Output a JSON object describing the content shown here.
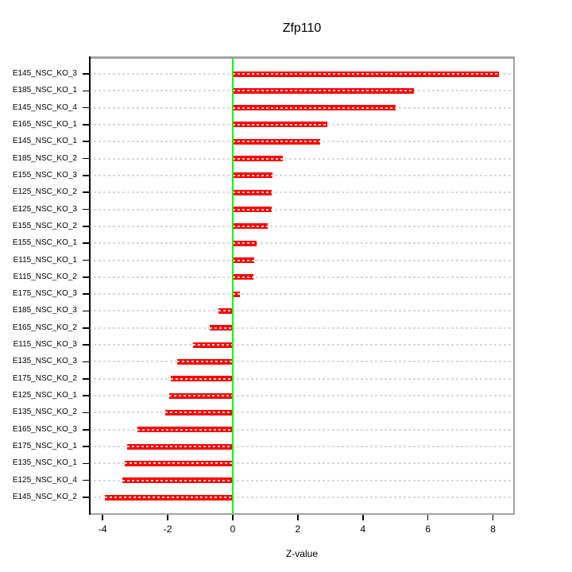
{
  "chart_data": {
    "type": "bar",
    "orientation": "horizontal",
    "title": "Zfp110",
    "xlabel": "Z-value",
    "ylabel": "",
    "categories": [
      "E145_NSC_KO_3",
      "E185_NSC_KO_1",
      "E145_NSC_KO_4",
      "E165_NSC_KO_1",
      "E145_NSC_KO_1",
      "E185_NSC_KO_2",
      "E155_NSC_KO_3",
      "E125_NSC_KO_2",
      "E125_NSC_KO_3",
      "E155_NSC_KO_2",
      "E155_NSC_KO_1",
      "E115_NSC_KO_1",
      "E115_NSC_KO_2",
      "E175_NSC_KO_3",
      "E185_NSC_KO_3",
      "E165_NSC_KO_2",
      "E115_NSC_KO_3",
      "E135_NSC_KO_3",
      "E175_NSC_KO_2",
      "E125_NSC_KO_1",
      "E135_NSC_KO_2",
      "E165_NSC_KO_3",
      "E175_NSC_KO_1",
      "E135_NSC_KO_1",
      "E125_NSC_KO_4",
      "E145_NSC_KO_2"
    ],
    "values": [
      8.19,
      5.57,
      5.0,
      2.91,
      2.68,
      1.54,
      1.21,
      1.19,
      1.19,
      1.07,
      0.74,
      0.66,
      0.64,
      0.23,
      -0.45,
      -0.71,
      -1.22,
      -1.7,
      -1.9,
      -1.96,
      -2.08,
      -2.93,
      -3.25,
      -3.32,
      -3.4,
      -3.94
    ],
    "x_ticks": [
      -4,
      -2,
      0,
      2,
      4,
      6,
      8
    ],
    "xlim": [
      -4.4,
      8.7
    ],
    "grid": "dashed horizontal line per category",
    "zero_reference_line": 0,
    "legend": "none",
    "colors": {
      "bar": "#ff0000",
      "bar_dash_overlay": "#ffffff",
      "zero_line": "#00ff00",
      "gridline": "#d9d9d9",
      "box_border": "#a3a3a3",
      "axis_line": "#000000",
      "text": "#000000",
      "background": "#ffffff"
    }
  }
}
